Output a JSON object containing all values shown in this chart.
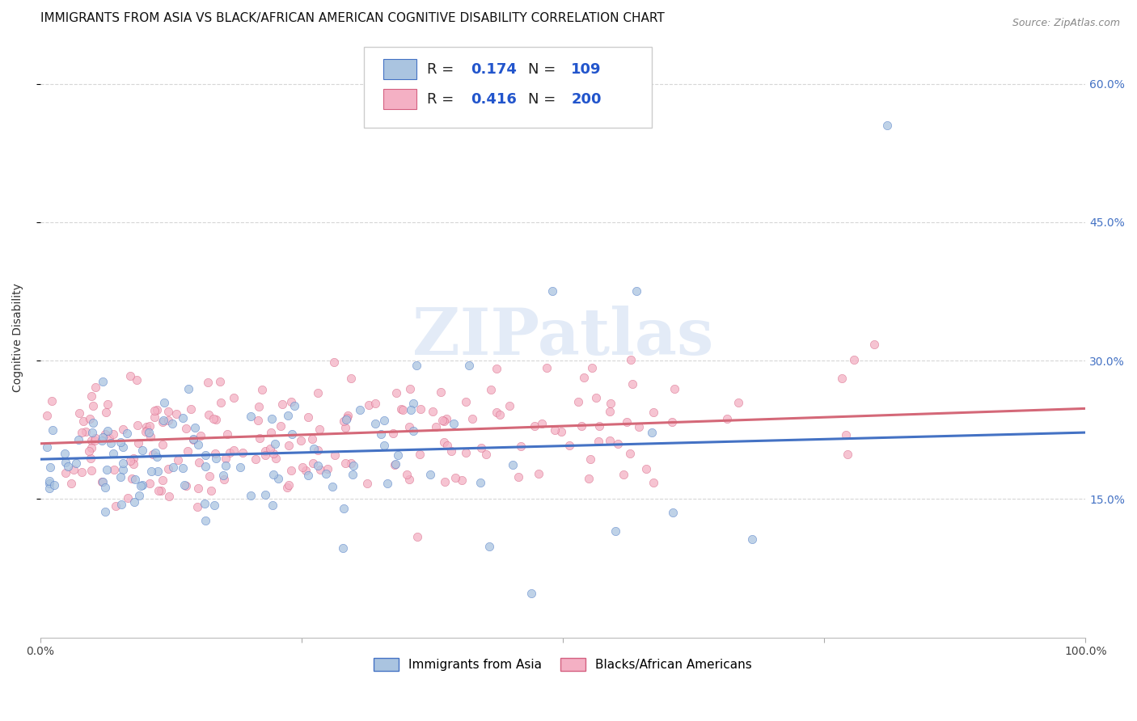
{
  "title": "IMMIGRANTS FROM ASIA VS BLACK/AFRICAN AMERICAN COGNITIVE DISABILITY CORRELATION CHART",
  "source": "Source: ZipAtlas.com",
  "ylabel": "Cognitive Disability",
  "xlim": [
    0.0,
    1.0
  ],
  "ylim": [
    0.0,
    0.65
  ],
  "ytick_vals": [
    0.15,
    0.3,
    0.45,
    0.6
  ],
  "right_ytick_labels": [
    "15.0%",
    "30.0%",
    "45.0%",
    "60.0%"
  ],
  "xtick_vals": [
    0.0,
    0.25,
    0.5,
    0.75,
    1.0
  ],
  "xtick_labels": [
    "0.0%",
    "",
    "",
    "",
    "100.0%"
  ],
  "color_asia_fill": "#aac4e0",
  "color_asia_edge": "#4472c4",
  "color_black_fill": "#f4b0c4",
  "color_black_edge": "#d46080",
  "color_line_asia": "#4472c4",
  "color_line_black": "#d46878",
  "R_asia": 0.174,
  "N_asia": 109,
  "R_black": 0.416,
  "N_black": 200,
  "legend_label_asia": "Immigrants from Asia",
  "legend_label_black": "Blacks/African Americans",
  "watermark": "ZIPatlas",
  "line_asia_start_y": 0.193,
  "line_asia_end_y": 0.222,
  "line_black_start_y": 0.21,
  "line_black_end_y": 0.248
}
